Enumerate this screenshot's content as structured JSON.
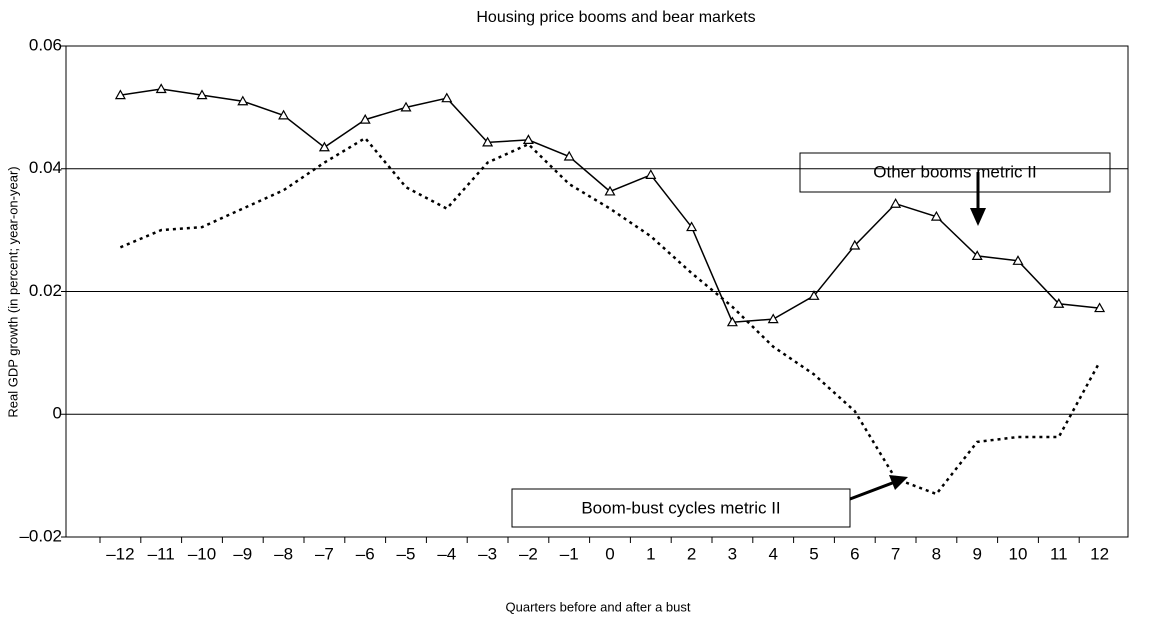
{
  "chart_data": {
    "type": "line",
    "title": "Housing price booms and bear markets",
    "x_label": "Quarters before and after a bust",
    "y_label": "Real GDP growth (in percent; year-on-year)",
    "categories": [
      "–12",
      "–11",
      "–10",
      "–9",
      "–8",
      "–7",
      "–6",
      "–5",
      "–4",
      "–3",
      "–2",
      "–1",
      "0",
      "1",
      "2",
      "3",
      "4",
      "5",
      "6",
      "7",
      "8",
      "9",
      "10",
      "11",
      "12"
    ],
    "series": [
      {
        "name": "Other booms metric II",
        "color": "#000000",
        "marker": "triangle",
        "dash": "solid",
        "values": [
          0.052,
          0.053,
          0.052,
          0.051,
          0.0487,
          0.0435,
          0.048,
          0.05,
          0.0515,
          0.0443,
          0.0447,
          0.042,
          0.0363,
          0.039,
          0.0305,
          0.015,
          0.0155,
          0.0193,
          0.0275,
          0.0343,
          0.0322,
          0.0258,
          0.025,
          0.018,
          0.0173
        ]
      },
      {
        "name": "Boom-bust cycles metric II",
        "color": "#000000",
        "marker": "none",
        "dash": "dotted",
        "values": [
          0.0272,
          0.03,
          0.0305,
          0.0335,
          0.0365,
          0.041,
          0.045,
          0.037,
          0.0335,
          0.041,
          0.044,
          0.0375,
          0.0335,
          0.029,
          0.023,
          0.0175,
          0.011,
          0.0065,
          0.0005,
          -0.0105,
          -0.013,
          -0.0045,
          -0.0037,
          -0.0037,
          0.0085
        ]
      }
    ],
    "ylim": [
      -0.02,
      0.06
    ],
    "yticks": [
      {
        "value": -0.02,
        "label": "–0.02"
      },
      0,
      0.02,
      0.04,
      0.06
    ],
    "grid": true
  }
}
